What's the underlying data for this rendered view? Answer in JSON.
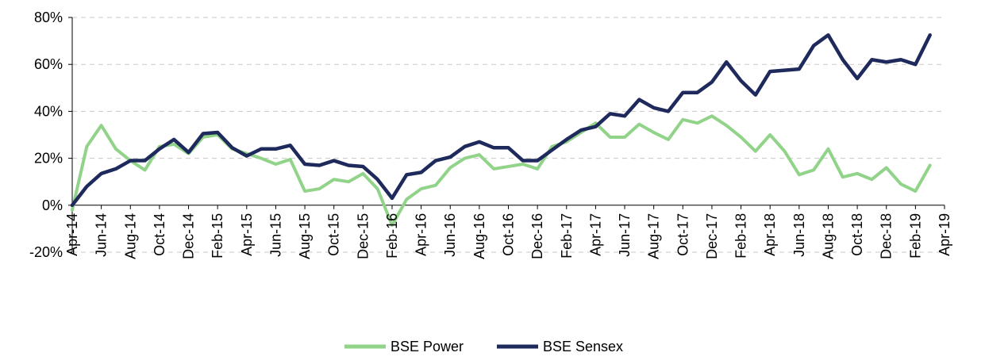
{
  "chart_data": {
    "type": "line",
    "title": "",
    "xlabel": "",
    "ylabel": "",
    "ylim": [
      -20,
      80
    ],
    "yticks": [
      "-20%",
      "0%",
      "20%",
      "40%",
      "60%",
      "80%"
    ],
    "ytick_values": [
      -20,
      0,
      20,
      40,
      60,
      80
    ],
    "grid": "horizontal dashed",
    "legend_position": "bottom",
    "categories": [
      "Apr-14",
      "May-14",
      "Jun-14",
      "Jul-14",
      "Aug-14",
      "Sep-14",
      "Oct-14",
      "Nov-14",
      "Dec-14",
      "Jan-15",
      "Feb-15",
      "Mar-15",
      "Apr-15",
      "May-15",
      "Jun-15",
      "Jul-15",
      "Aug-15",
      "Sep-15",
      "Oct-15",
      "Nov-15",
      "Dec-15",
      "Jan-16",
      "Feb-16",
      "Mar-16",
      "Apr-16",
      "May-16",
      "Jun-16",
      "Jul-16",
      "Aug-16",
      "Sep-16",
      "Oct-16",
      "Nov-16",
      "Dec-16",
      "Jan-17",
      "Feb-17",
      "Mar-17",
      "Apr-17",
      "May-17",
      "Jun-17",
      "Jul-17",
      "Aug-17",
      "Sep-17",
      "Oct-17",
      "Nov-17",
      "Dec-17",
      "Jan-18",
      "Feb-18",
      "Mar-18",
      "Apr-18",
      "May-18",
      "Jun-18",
      "Jul-18",
      "Aug-18",
      "Sep-18",
      "Oct-18",
      "Nov-18",
      "Dec-18",
      "Jan-19",
      "Feb-19",
      "Mar-19",
      "Apr-19"
    ],
    "tick_labels": [
      "Apr-14",
      "Jun-14",
      "Aug-14",
      "Oct-14",
      "Dec-14",
      "Feb-15",
      "Apr-15",
      "Jun-15",
      "Aug-15",
      "Oct-15",
      "Dec-15",
      "Feb-16",
      "Apr-16",
      "Jun-16",
      "Aug-16",
      "Oct-16",
      "Dec-16",
      "Feb-17",
      "Apr-17",
      "Jun-17",
      "Aug-17",
      "Oct-17",
      "Dec-17",
      "Feb-18",
      "Apr-18",
      "Jun-18",
      "Aug-18",
      "Oct-18",
      "Dec-18",
      "Feb-19",
      "Apr-19"
    ],
    "series": [
      {
        "name": "BSE Power",
        "color": "#92d38a",
        "values": [
          -2,
          25,
          34,
          24,
          19,
          15,
          25,
          26,
          22,
          29,
          30,
          24,
          22,
          20,
          17.5,
          19.5,
          6,
          7,
          11,
          10,
          13.5,
          7,
          -8.5,
          2.5,
          7,
          8.5,
          16,
          20,
          21.5,
          15.5,
          16.5,
          17.5,
          15.5,
          25,
          27,
          31,
          35,
          29,
          29,
          34.5,
          31,
          28,
          36.5,
          35,
          38,
          34,
          29,
          23,
          30,
          23,
          13,
          15,
          24,
          12,
          13.5,
          11,
          16,
          9,
          6,
          17,
          null
        ]
      },
      {
        "name": "BSE Sensex",
        "color": "#1f2a5c",
        "values": [
          0,
          8,
          13.5,
          15.5,
          19,
          19,
          24,
          28,
          22.5,
          30.5,
          31,
          24.5,
          21,
          24,
          24,
          25.5,
          17.5,
          17,
          19,
          17,
          16.5,
          11,
          3,
          13,
          14,
          19,
          20.5,
          25,
          27,
          24.5,
          24.5,
          19,
          19,
          23.5,
          28,
          32,
          33.5,
          39,
          38,
          45,
          41.5,
          40,
          48,
          48,
          52.5,
          61,
          53,
          47,
          57,
          57.5,
          58,
          68,
          72.5,
          62,
          54,
          62,
          61,
          62,
          60,
          72.5,
          null
        ]
      }
    ]
  }
}
